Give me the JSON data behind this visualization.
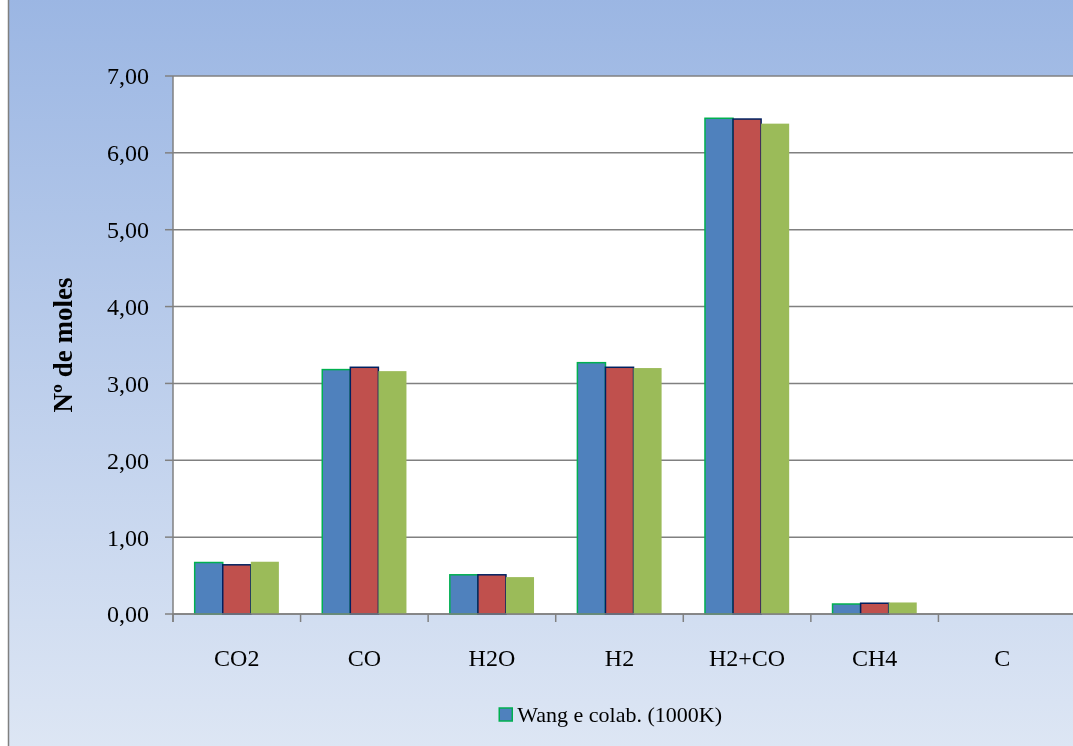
{
  "chart_data": {
    "type": "bar",
    "ylabel": "Nº de moles",
    "categories": [
      "CO2",
      "CO",
      "H2O",
      "H2",
      "H2+CO",
      "CH4",
      "C"
    ],
    "series": [
      {
        "name": "Wang e colab. (1000K)",
        "color": "#4f81bd",
        "values": [
          0.67,
          3.18,
          0.51,
          3.27,
          6.45,
          0.13,
          0
        ]
      },
      {
        "color": "#c0504d",
        "values": [
          0.64,
          3.21,
          0.51,
          3.21,
          6.44,
          0.14,
          0
        ]
      },
      {
        "color": "#9bbb59",
        "values": [
          0.68,
          3.16,
          0.48,
          3.2,
          6.38,
          0.15,
          0
        ]
      }
    ],
    "ylim": [
      0,
      7
    ],
    "yticks": [
      {
        "value": 0,
        "label": "0,00"
      },
      {
        "value": 1,
        "label": "1,00"
      },
      {
        "value": 2,
        "label": "2,00"
      },
      {
        "value": 3,
        "label": "3,00"
      },
      {
        "value": 4,
        "label": "4,00"
      },
      {
        "value": 5,
        "label": "5,00"
      },
      {
        "value": 6,
        "label": "6,00"
      },
      {
        "value": 7,
        "label": "7,00"
      }
    ],
    "grid": "y",
    "legend": "bottom"
  }
}
